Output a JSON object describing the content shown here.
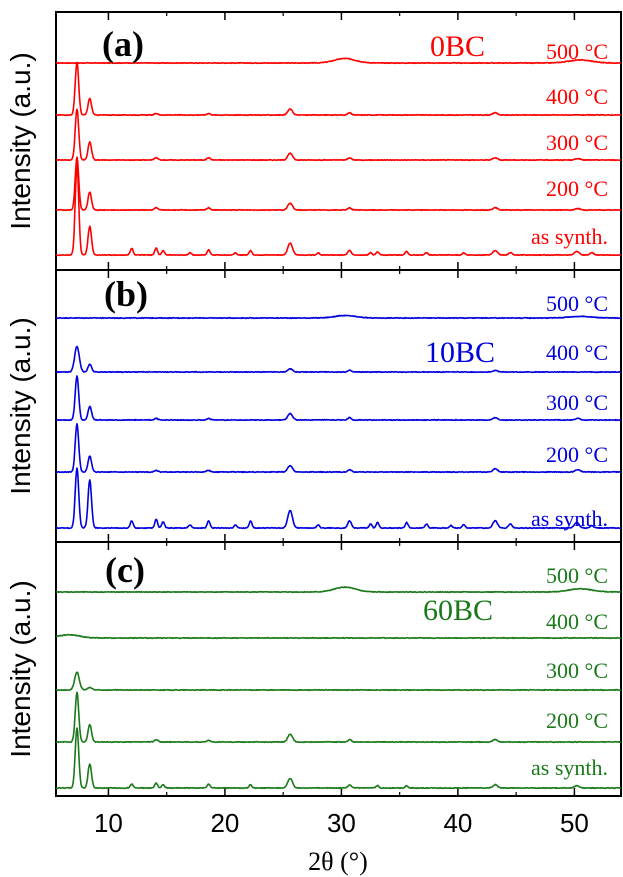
{
  "figure": {
    "xlabel": "2θ (°)",
    "xticks": [
      "10",
      "20",
      "30",
      "40",
      "50"
    ]
  },
  "chart_data": [
    {
      "type": "line",
      "panel_label": "(a)",
      "sample": "0BC",
      "color": "#ff0000",
      "ylabel": "Intensity (a.u.)",
      "xlim": [
        5.5,
        54
      ],
      "xticks": [
        10,
        20,
        30,
        40,
        50
      ],
      "yticks": "none",
      "series": [
        {
          "name": "500 °C",
          "peaks": [
            [
              30.3,
              6,
              0.9
            ],
            [
              50.5,
              4,
              1.0
            ]
          ]
        },
        {
          "name": "400 °C",
          "peaks": [
            [
              7.3,
              70,
              0.15
            ],
            [
              8.4,
              22,
              0.15
            ],
            [
              14.1,
              2,
              0.15
            ],
            [
              18.6,
              2,
              0.15
            ],
            [
              25.6,
              8,
              0.2
            ],
            [
              30.7,
              3,
              0.15
            ],
            [
              43.2,
              3,
              0.2
            ]
          ]
        },
        {
          "name": "300 °C",
          "peaks": [
            [
              7.3,
              68,
              0.15
            ],
            [
              8.4,
              24,
              0.15
            ],
            [
              14.1,
              3,
              0.15
            ],
            [
              18.6,
              3,
              0.15
            ],
            [
              25.6,
              9,
              0.2
            ],
            [
              30.7,
              3,
              0.15
            ],
            [
              43.2,
              3,
              0.2
            ],
            [
              50.3,
              2,
              0.2
            ]
          ]
        },
        {
          "name": "200 °C",
          "peaks": [
            [
              7.3,
              70,
              0.15
            ],
            [
              8.4,
              24,
              0.15
            ],
            [
              14.1,
              3,
              0.15
            ],
            [
              18.6,
              3,
              0.15
            ],
            [
              25.6,
              9,
              0.2
            ],
            [
              30.7,
              3,
              0.15
            ],
            [
              43.2,
              3,
              0.2
            ],
            [
              50.3,
              2,
              0.2
            ]
          ]
        },
        {
          "name": "as synth.",
          "peaks": [
            [
              7.3,
              120,
              0.15
            ],
            [
              8.4,
              38,
              0.15
            ],
            [
              12.0,
              9,
              0.12
            ],
            [
              14.1,
              9,
              0.12
            ],
            [
              14.7,
              6,
              0.12
            ],
            [
              17.0,
              3,
              0.12
            ],
            [
              18.6,
              7,
              0.12
            ],
            [
              20.9,
              3,
              0.12
            ],
            [
              22.2,
              6,
              0.12
            ],
            [
              25.6,
              16,
              0.2
            ],
            [
              28.0,
              3,
              0.12
            ],
            [
              30.7,
              6,
              0.15
            ],
            [
              32.5,
              3,
              0.12
            ],
            [
              33.1,
              4,
              0.12
            ],
            [
              35.6,
              5,
              0.12
            ],
            [
              37.3,
              3,
              0.12
            ],
            [
              40.5,
              3,
              0.12
            ],
            [
              43.2,
              6,
              0.2
            ],
            [
              44.5,
              3,
              0.15
            ],
            [
              50.2,
              5,
              0.2
            ],
            [
              51.5,
              3,
              0.15
            ]
          ]
        }
      ]
    },
    {
      "type": "line",
      "panel_label": "(b)",
      "sample": "10BC",
      "color": "#0000dd",
      "ylabel": "Intensity (a.u.)",
      "xlim": [
        5.5,
        54
      ],
      "xticks": [
        10,
        20,
        30,
        40,
        50
      ],
      "yticks": "none",
      "series": [
        {
          "name": "500 °C",
          "peaks": [
            [
              30.3,
              3,
              0.9
            ],
            [
              50.5,
              2,
              1.0
            ]
          ]
        },
        {
          "name": "400 °C",
          "peaks": [
            [
              7.3,
              32,
              0.2
            ],
            [
              8.4,
              10,
              0.15
            ],
            [
              25.6,
              4,
              0.2
            ],
            [
              30.7,
              2,
              0.15
            ],
            [
              43.2,
              2,
              0.2
            ]
          ]
        },
        {
          "name": "300 °C",
          "peaks": [
            [
              7.3,
              55,
              0.15
            ],
            [
              8.4,
              17,
              0.15
            ],
            [
              14.1,
              2,
              0.15
            ],
            [
              18.6,
              2,
              0.15
            ],
            [
              25.6,
              8,
              0.2
            ],
            [
              30.7,
              3,
              0.15
            ],
            [
              43.2,
              3,
              0.2
            ],
            [
              50.3,
              2,
              0.2
            ]
          ]
        },
        {
          "name": "200 °C",
          "peaks": [
            [
              7.3,
              60,
              0.15
            ],
            [
              8.4,
              20,
              0.15
            ],
            [
              14.1,
              2,
              0.15
            ],
            [
              18.6,
              2,
              0.15
            ],
            [
              25.6,
              8,
              0.2
            ],
            [
              30.7,
              3,
              0.15
            ],
            [
              43.2,
              4,
              0.2
            ],
            [
              50.3,
              3,
              0.2
            ]
          ]
        },
        {
          "name": "as synth.",
          "peaks": [
            [
              7.3,
              75,
              0.15
            ],
            [
              8.4,
              60,
              0.15
            ],
            [
              12.0,
              9,
              0.12
            ],
            [
              14.1,
              11,
              0.12
            ],
            [
              14.7,
              8,
              0.12
            ],
            [
              17.0,
              4,
              0.12
            ],
            [
              18.6,
              9,
              0.12
            ],
            [
              20.9,
              4,
              0.12
            ],
            [
              22.2,
              9,
              0.12
            ],
            [
              25.6,
              22,
              0.2
            ],
            [
              28.0,
              4,
              0.12
            ],
            [
              30.7,
              9,
              0.15
            ],
            [
              32.5,
              5,
              0.12
            ],
            [
              33.1,
              7,
              0.12
            ],
            [
              35.6,
              7,
              0.12
            ],
            [
              37.3,
              5,
              0.12
            ],
            [
              39.4,
              3,
              0.12
            ],
            [
              40.5,
              4,
              0.12
            ],
            [
              43.2,
              9,
              0.2
            ],
            [
              44.5,
              5,
              0.15
            ],
            [
              50.2,
              7,
              0.2
            ],
            [
              51.5,
              3,
              0.15
            ]
          ]
        }
      ]
    },
    {
      "type": "line",
      "panel_label": "(c)",
      "sample": "60BC",
      "color": "#1a7a1a",
      "ylabel": "Intensity (a.u.)",
      "xlim": [
        5.5,
        54
      ],
      "xticks": [
        10,
        20,
        30,
        40,
        50
      ],
      "yticks": "none",
      "series": [
        {
          "name": "500 °C",
          "peaks": [
            [
              30.3,
              6,
              0.9
            ],
            [
              50.5,
              4,
              1.0
            ]
          ]
        },
        {
          "name": "400 °C",
          "peaks": [
            [
              6.6,
              4,
              0.9
            ]
          ]
        },
        {
          "name": "300 °C",
          "peaks": [
            [
              7.3,
              22,
              0.2
            ],
            [
              8.4,
              3,
              0.2
            ]
          ]
        },
        {
          "name": "200 °C",
          "peaks": [
            [
              7.3,
              62,
              0.15
            ],
            [
              8.4,
              22,
              0.15
            ],
            [
              14.1,
              3,
              0.15
            ],
            [
              18.6,
              2,
              0.15
            ],
            [
              25.6,
              10,
              0.2
            ],
            [
              30.7,
              3,
              0.15
            ],
            [
              43.2,
              3,
              0.2
            ]
          ]
        },
        {
          "name": "as synth.",
          "peaks": [
            [
              7.3,
              75,
              0.15
            ],
            [
              8.4,
              30,
              0.15
            ],
            [
              12.0,
              5,
              0.12
            ],
            [
              14.1,
              6,
              0.12
            ],
            [
              14.7,
              4,
              0.12
            ],
            [
              18.6,
              5,
              0.12
            ],
            [
              22.2,
              4,
              0.12
            ],
            [
              25.6,
              12,
              0.2
            ],
            [
              30.7,
              4,
              0.15
            ],
            [
              33.1,
              3,
              0.12
            ],
            [
              35.6,
              3,
              0.12
            ],
            [
              43.2,
              4,
              0.2
            ],
            [
              50.2,
              3,
              0.2
            ]
          ]
        }
      ]
    }
  ]
}
